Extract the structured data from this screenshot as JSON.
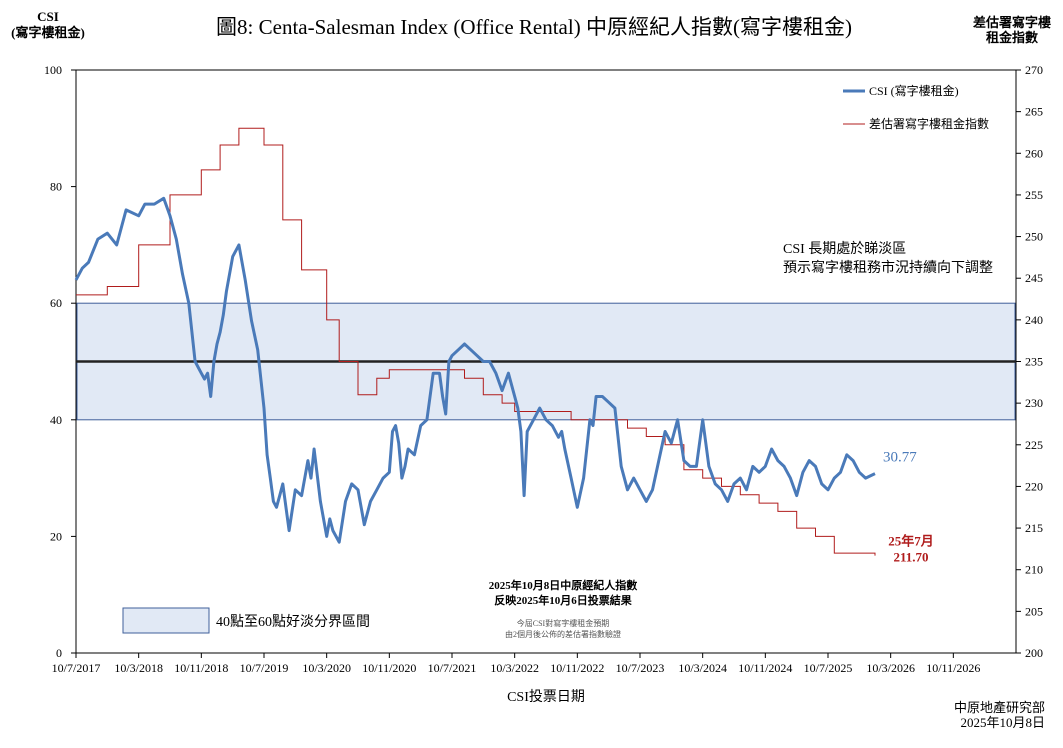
{
  "chart_data": {
    "type": "line",
    "title": "圖8: Centa-Salesman Index (Office Rental)   中原經紀人指數(寫字樓租金)",
    "left_axis_title_1": "CSI",
    "left_axis_title_2": "(寫字樓租金)",
    "right_axis_title_1": "差估署寫字樓",
    "right_axis_title_2": "租金指數",
    "xlabel": "CSI投票日期",
    "ylim_left": [
      0,
      100
    ],
    "ylim_right": [
      200,
      270
    ],
    "yticks_left": [
      "0",
      "20",
      "40",
      "60",
      "80",
      "100"
    ],
    "yticks_right": [
      "200",
      "205",
      "210",
      "215",
      "220",
      "225",
      "230",
      "235",
      "240",
      "245",
      "250",
      "255",
      "260",
      "265",
      "270"
    ],
    "xticks": [
      "10/7/2017",
      "10/3/2018",
      "10/11/2018",
      "10/7/2019",
      "10/3/2020",
      "10/11/2020",
      "10/7/2021",
      "10/3/2022",
      "10/11/2022",
      "10/7/2023",
      "10/3/2024",
      "10/11/2024",
      "10/7/2025",
      "10/3/2026",
      "10/11/2026"
    ],
    "neutral_band": [
      40,
      60
    ],
    "midline": 50,
    "legend": [
      "CSI (寫字樓租金)",
      "差估署寫字樓租金指數"
    ],
    "series": [
      {
        "name": "CSI (寫字樓租金)",
        "axis": "left",
        "color": "#4a7ab9",
        "t": [
          0,
          0.1,
          0.2,
          0.35,
          0.5,
          0.65,
          0.8,
          1.0,
          1.1,
          1.25,
          1.4,
          1.5,
          1.6,
          1.7,
          1.8,
          1.9,
          2.0,
          2.05,
          2.1,
          2.15,
          2.2,
          2.25,
          2.3,
          2.35,
          2.4,
          2.5,
          2.6,
          2.7,
          2.8,
          2.9,
          3.0,
          3.05,
          3.1,
          3.15,
          3.2,
          3.25,
          3.3,
          3.4,
          3.5,
          3.6,
          3.7,
          3.75,
          3.8,
          3.9,
          4.0,
          4.05,
          4.1,
          4.2,
          4.3,
          4.4,
          4.5,
          4.6,
          4.7,
          4.8,
          4.9,
          5.0,
          5.05,
          5.1,
          5.15,
          5.2,
          5.25,
          5.3,
          5.4,
          5.5,
          5.6,
          5.7,
          5.8,
          5.85,
          5.9,
          5.95,
          6.0,
          6.1,
          6.2,
          6.3,
          6.4,
          6.5,
          6.6,
          6.7,
          6.8,
          6.9,
          7.0,
          7.05,
          7.1,
          7.15,
          7.2,
          7.3,
          7.4,
          7.5,
          7.6,
          7.7,
          7.75,
          7.8,
          7.9,
          8.0,
          8.1,
          8.2,
          8.25,
          8.3,
          8.4,
          8.5,
          8.6,
          8.7,
          8.8,
          8.9,
          9.0,
          9.1,
          9.2,
          9.3,
          9.4,
          9.5,
          9.6,
          9.7,
          9.8,
          9.9,
          10.0,
          10.05,
          10.1,
          10.2,
          10.3,
          10.4,
          10.5,
          10.6,
          10.7,
          10.8,
          10.9,
          11.0,
          11.1,
          11.2,
          11.3,
          11.4,
          11.5,
          11.6,
          11.7,
          11.8,
          11.9,
          12.0,
          12.1,
          12.2,
          12.3,
          12.4,
          12.5,
          12.6,
          12.75
        ],
        "values": [
          64,
          66,
          67,
          71,
          72,
          70,
          76,
          75,
          77,
          77,
          78,
          75,
          71,
          65,
          60,
          50,
          48,
          47,
          48,
          44,
          50,
          53,
          55,
          58,
          62,
          68,
          70,
          64,
          57,
          52,
          42,
          34,
          30,
          26,
          25,
          27,
          29,
          21,
          28,
          27,
          33,
          30,
          35,
          26,
          20,
          23,
          21,
          19,
          26,
          29,
          28,
          22,
          26,
          28,
          30,
          31,
          38,
          39,
          36,
          30,
          32,
          35,
          34,
          39,
          40,
          48,
          48,
          44,
          41,
          50,
          51,
          52,
          53,
          52,
          51,
          50,
          50,
          48,
          45,
          48,
          44,
          42,
          38,
          27,
          38,
          40,
          42,
          40,
          39,
          37,
          38,
          35,
          30,
          25,
          30,
          40,
          39,
          44,
          44,
          43,
          42,
          32,
          28,
          30,
          28,
          26,
          28,
          33,
          38,
          36,
          40,
          33,
          32,
          32,
          40,
          36,
          32,
          29,
          28,
          26,
          29,
          30,
          28,
          32,
          31,
          32,
          35,
          33,
          32,
          30,
          27,
          31,
          33,
          32,
          29,
          28,
          30,
          31,
          34,
          33,
          31,
          30,
          30.77
        ],
        "last_label": "30.77"
      },
      {
        "name": "差估署寫字樓租金指數",
        "axis": "right",
        "color": "#b01c1c",
        "t": [
          0,
          0.5,
          1.0,
          1.5,
          2.0,
          2.3,
          2.6,
          3.0,
          3.3,
          3.6,
          4.0,
          4.2,
          4.5,
          4.8,
          5.0,
          5.3,
          5.6,
          5.9,
          6.2,
          6.5,
          6.8,
          7.0,
          7.3,
          7.6,
          7.9,
          8.2,
          8.5,
          8.8,
          9.1,
          9.4,
          9.7,
          10.0,
          10.3,
          10.6,
          10.9,
          11.2,
          11.5,
          11.8,
          12.1,
          12.4,
          12.75
        ],
        "values": [
          243,
          244,
          249,
          255,
          258,
          261,
          263,
          261,
          252,
          246,
          240,
          235,
          231,
          233,
          234,
          234,
          234,
          234,
          233,
          231,
          230,
          229,
          229,
          229,
          228,
          228,
          228,
          227,
          226,
          225,
          222,
          221,
          220,
          219,
          218,
          217,
          215,
          214,
          212,
          212,
          211.7
        ],
        "last_label_1": "25年7月",
        "last_label_2": "211.70"
      }
    ],
    "band_legend": "40點至60點好淡分界區間",
    "annotation_right_1": "CSI 長期處於睇淡區",
    "annotation_right_2": "預示寫字樓租務市況持續向下調整",
    "note_bold_1": "2025年10月8日中原經紀人指數",
    "note_bold_2": "反映2025年10月6日投票結果",
    "note_small_1": "今屆CSI對寫字樓租金預期",
    "note_small_2": "由2個月後公佈的差估署指數驗證",
    "source_1": "中原地產研究部",
    "source_2": "2025年10月8日"
  }
}
